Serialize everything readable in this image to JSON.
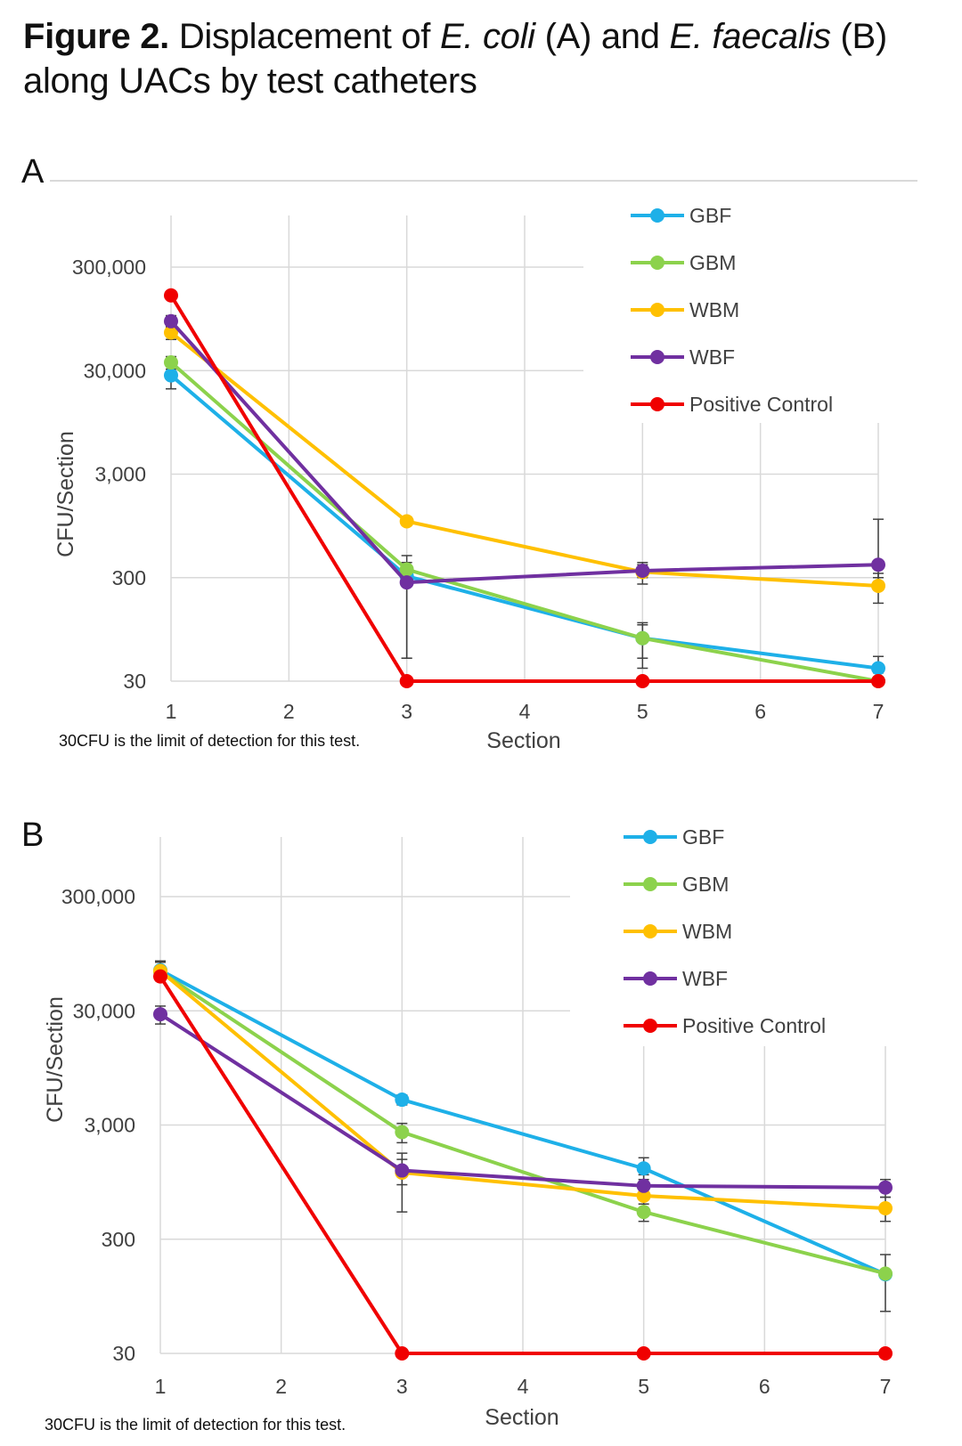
{
  "figure": {
    "title_lead": "Figure 2.",
    "title_part1": " Displacement of ",
    "title_org1": "E. coli",
    "title_part2": " (A) and ",
    "title_org2": "E. faecalis",
    "title_part3": " (B)",
    "title_line2": "along UACs by test catheters"
  },
  "chart_data": [
    {
      "panel": "A",
      "type": "line",
      "ylabel": "CFU/Section",
      "xlabel": "Section",
      "y_scale": "log",
      "ylim": [
        30,
        1000000
      ],
      "xlim": [
        1,
        7
      ],
      "x_ticks": [
        "1",
        "2",
        "3",
        "4",
        "5",
        "6",
        "7"
      ],
      "y_ticks": [
        {
          "value": 30,
          "label": "30"
        },
        {
          "value": 300,
          "label": "300"
        },
        {
          "value": 3000,
          "label": "3,000"
        },
        {
          "value": 30000,
          "label": "30,000"
        },
        {
          "value": 300000,
          "label": "300,000"
        }
      ],
      "grid": true,
      "legend_position": "top-right",
      "footnote": "30CFU is the limit of detection for this test.",
      "series": [
        {
          "name": "GBF",
          "color": "#1EB0E8",
          "x": [
            1,
            3,
            5,
            7
          ],
          "y": [
            27000,
            310,
            78,
            40
          ],
          "err_low": [
            20000,
            50,
            40,
            36
          ],
          "err_high": [
            34000,
            380,
            110,
            52
          ]
        },
        {
          "name": "GBM",
          "color": "#8CD24C",
          "x": [
            1,
            3,
            5,
            7
          ],
          "y": [
            36000,
            360,
            78,
            30
          ],
          "err_low": [
            31000,
            320,
            50,
            30
          ],
          "err_high": [
            41000,
            420,
            105,
            30
          ]
        },
        {
          "name": "WBM",
          "color": "#FFC000",
          "x": [
            1,
            3,
            5,
            7
          ],
          "y": [
            70000,
            1050,
            340,
            250
          ],
          "err_low": [
            60000,
            960,
            260,
            170
          ],
          "err_high": [
            80000,
            1150,
            420,
            330
          ]
        },
        {
          "name": "WBF",
          "color": "#7030A0",
          "x": [
            1,
            3,
            5,
            7
          ],
          "y": [
            90000,
            270,
            350,
            400
          ],
          "err_low": [
            78000,
            50,
            300,
            300
          ],
          "err_high": [
            102000,
            490,
            400,
            1100
          ]
        },
        {
          "name": "Positive Control",
          "color": "#F00000",
          "x": [
            1,
            3,
            5,
            7
          ],
          "y": [
            160000,
            30,
            30,
            30
          ],
          "err_low": [
            160000,
            30,
            30,
            30
          ],
          "err_high": [
            160000,
            30,
            30,
            30
          ]
        }
      ]
    },
    {
      "panel": "B",
      "type": "line",
      "ylabel": "CFU/Section",
      "xlabel": "Section",
      "y_scale": "log",
      "ylim": [
        30,
        1000000
      ],
      "xlim": [
        1,
        7
      ],
      "x_ticks": [
        "1",
        "2",
        "3",
        "4",
        "5",
        "6",
        "7"
      ],
      "y_ticks": [
        {
          "value": 30,
          "label": "30"
        },
        {
          "value": 300,
          "label": "300"
        },
        {
          "value": 3000,
          "label": "3,000"
        },
        {
          "value": 30000,
          "label": "30,000"
        },
        {
          "value": 300000,
          "label": "300,000"
        }
      ],
      "grid": true,
      "legend_position": "top-right",
      "footnote": "30CFU is the limit of detection for this test.",
      "series": [
        {
          "name": "GBF",
          "color": "#1EB0E8",
          "x": [
            1,
            3,
            5,
            7
          ],
          "y": [
            68000,
            5000,
            1250,
            148
          ],
          "err_low": [
            55000,
            4500,
            1000,
            70
          ],
          "err_high": [
            82000,
            5500,
            1550,
            220
          ]
        },
        {
          "name": "GBM",
          "color": "#8CD24C",
          "x": [
            1,
            3,
            5,
            7
          ],
          "y": [
            66000,
            2600,
            520,
            150
          ],
          "err_low": [
            55000,
            2100,
            430,
            140
          ],
          "err_high": [
            80000,
            3100,
            610,
            160
          ]
        },
        {
          "name": "WBM",
          "color": "#FFC000",
          "x": [
            1,
            3,
            5,
            7
          ],
          "y": [
            67000,
            1150,
            720,
            560
          ],
          "err_low": [
            56000,
            520,
            560,
            430
          ],
          "err_high": [
            80000,
            1700,
            900,
            700
          ]
        },
        {
          "name": "WBF",
          "color": "#7030A0",
          "x": [
            1,
            3,
            5,
            7
          ],
          "y": [
            28000,
            1200,
            880,
            850
          ],
          "err_low": [
            23000,
            900,
            700,
            700
          ],
          "err_high": [
            33000,
            1500,
            1100,
            1000
          ]
        },
        {
          "name": "Positive Control",
          "color": "#F00000",
          "x": [
            1,
            3,
            5,
            7
          ],
          "y": [
            60000,
            30,
            30,
            30
          ],
          "err_low": [
            60000,
            30,
            30,
            30
          ],
          "err_high": [
            60000,
            30,
            30,
            30
          ]
        }
      ]
    }
  ]
}
